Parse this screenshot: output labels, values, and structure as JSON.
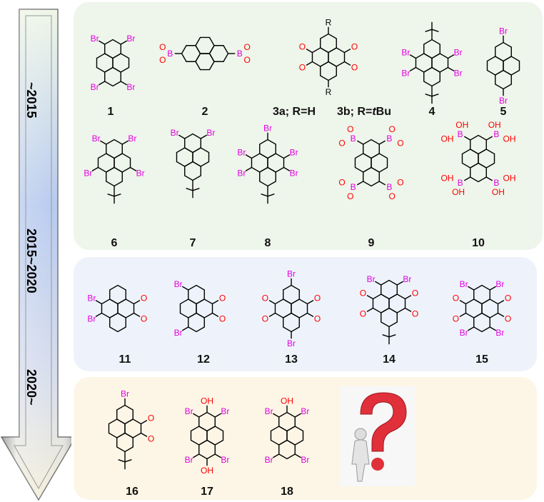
{
  "timeline": {
    "eras": [
      {
        "label": "~2015",
        "color": "#4a7a2a"
      },
      {
        "label": "2015~2020",
        "color": "#0a1f66"
      },
      {
        "label": "2020~",
        "color": "#ff0000"
      }
    ]
  },
  "colors": {
    "Br": "#e100e1",
    "B": "#e100e1",
    "O": "#ff0000",
    "OH": "#ff0000",
    "R": "#000000",
    "bond": "#000000"
  },
  "compounds": [
    {
      "label": "1",
      "atoms": [
        "Br",
        "Br",
        "Br",
        "Br"
      ]
    },
    {
      "label": "2",
      "atoms": [
        "B",
        "O",
        "O",
        "B",
        "O",
        "O"
      ]
    },
    {
      "label": "3",
      "atoms": [
        "R",
        "R",
        "O",
        "O",
        "O",
        "O"
      ]
    },
    {
      "label": "4",
      "atoms": [
        "Br",
        "Br",
        "Br",
        "Br"
      ]
    },
    {
      "label": "5",
      "atoms": [
        "Br",
        "Br"
      ]
    },
    {
      "label": "6",
      "atoms": [
        "Br",
        "Br",
        "Br",
        "Br"
      ]
    },
    {
      "label": "7",
      "atoms": [
        "Br",
        "Br"
      ]
    },
    {
      "label": "8",
      "atoms": [
        "Br",
        "Br",
        "Br",
        "Br",
        "Br"
      ]
    },
    {
      "label": "9",
      "atoms": [
        "B",
        "O",
        "O",
        "B",
        "O",
        "O",
        "B",
        "O",
        "O",
        "B",
        "O",
        "O"
      ]
    },
    {
      "label": "10",
      "atoms": [
        "B",
        "OH",
        "OH",
        "B",
        "OH",
        "OH",
        "B",
        "OH",
        "OH",
        "B",
        "OH",
        "OH"
      ]
    },
    {
      "label": "11",
      "atoms": [
        "Br",
        "Br",
        "O",
        "O"
      ]
    },
    {
      "label": "12",
      "atoms": [
        "Br",
        "Br",
        "O",
        "O"
      ]
    },
    {
      "label": "13",
      "atoms": [
        "Br",
        "Br",
        "O",
        "O",
        "O",
        "O"
      ]
    },
    {
      "label": "14",
      "atoms": [
        "Br",
        "Br",
        "O",
        "O",
        "O",
        "O"
      ]
    },
    {
      "label": "15",
      "atoms": [
        "Br",
        "Br",
        "Br",
        "Br",
        "O",
        "O",
        "O",
        "O"
      ]
    },
    {
      "label": "16",
      "atoms": [
        "Br",
        "O",
        "O"
      ]
    },
    {
      "label": "17",
      "atoms": [
        "OH",
        "Br",
        "Br",
        "OH",
        "Br",
        "Br"
      ]
    },
    {
      "label": "18",
      "atoms": [
        "OH",
        "Br",
        "Br",
        "Br",
        "Br"
      ]
    }
  ],
  "compound3_labels": {
    "a": "3a; R=H",
    "b_prefix": "3b; R=",
    "b_italic": "t",
    "b_suffix": "Bu"
  },
  "question_image": {
    "icon": "question-mark-figure-icon",
    "color": "#e0303a"
  }
}
